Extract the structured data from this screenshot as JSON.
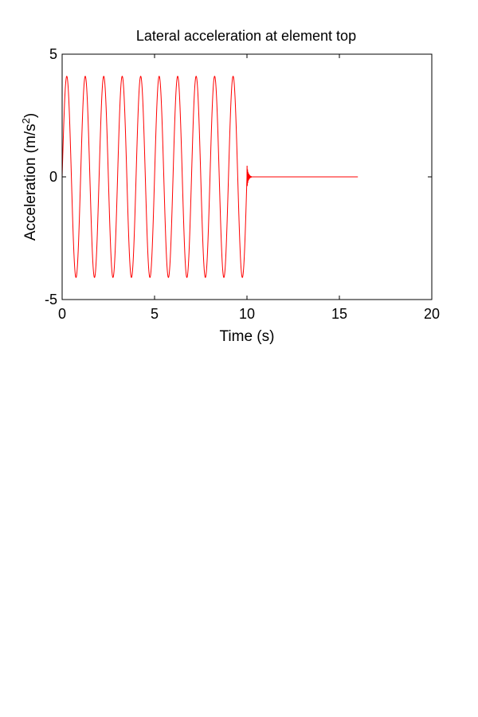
{
  "chart_data": {
    "type": "line",
    "title": "Lateral acceleration at element top",
    "xlabel": "Time (s)",
    "ylabel": "Acceleration (m/s",
    "ylabel_superscript": "2",
    "ylabel_close": ")",
    "xlim": [
      0,
      20
    ],
    "ylim": [
      -5,
      5
    ],
    "xticks": [
      0,
      5,
      10,
      15,
      20
    ],
    "yticks": [
      -5,
      0,
      5
    ],
    "grid": false,
    "series": [
      {
        "color": "#ff0000",
        "segments": [
          {
            "kind": "sinusoid",
            "t_start": 0,
            "t_end": 10,
            "amplitude": 4.1,
            "period": 1.0,
            "peak_time": 0.25
          },
          {
            "kind": "decaying_transient",
            "t_start": 10,
            "t_end": 10.25,
            "initial_amplitude": 0.5
          },
          {
            "kind": "flat",
            "t_start": 10.25,
            "t_end": 16,
            "value": 0
          }
        ]
      }
    ]
  }
}
